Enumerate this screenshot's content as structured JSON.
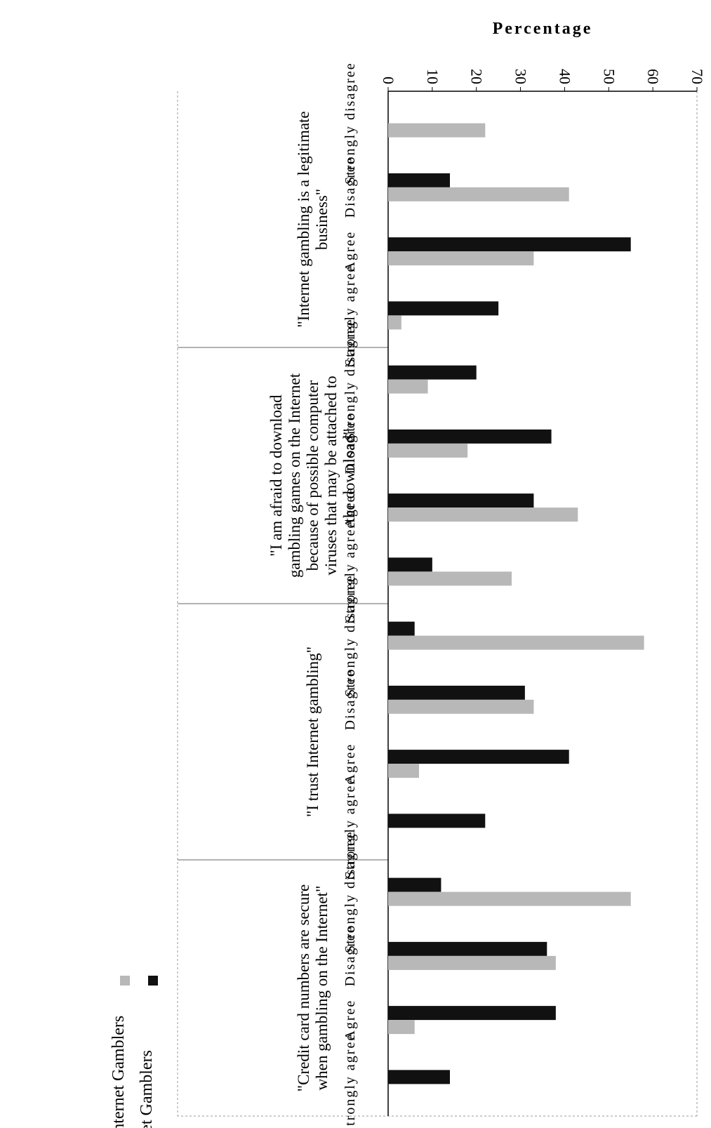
{
  "chart_data": {
    "type": "bar",
    "ylabel": "Percentage",
    "xlabel": "",
    "ylim": [
      0,
      70
    ],
    "yticks": [
      0,
      10,
      20,
      30,
      40,
      50,
      60,
      70
    ],
    "grid": false,
    "legend_position": "right",
    "groups": [
      {
        "statement": "\"Internet gambling is a legitimate business\"",
        "statement_lines": [
          "\"Internet gambling is a legitimate",
          "business\""
        ],
        "categories": [
          "Strongly disagree",
          "Disagree",
          "Agree",
          "Strongly agree"
        ]
      },
      {
        "statement": "\"I am afraid to download gambling games on the Internet because of possible computer viruses that may be attached to the download\"",
        "statement_lines": [
          "\"I am afraid to download",
          "gambling games on the Internet",
          "because of possible computer",
          "viruses that may be attached to",
          "the download\""
        ],
        "categories": [
          "Strongly disagree",
          "Disagree",
          "Agree",
          "Strongly agree"
        ]
      },
      {
        "statement": "\"I trust Internet gambling\"",
        "statement_lines": [
          "\"I trust Internet gambling\""
        ],
        "categories": [
          "Strongly disagree",
          "Disagree",
          "Agree",
          "Strongly agree"
        ]
      },
      {
        "statement": "\"Credit card numbers are secure when gambling on the Internet\"",
        "statement_lines": [
          "\"Credit card numbers are secure",
          "when gambling on the Internet\""
        ],
        "categories": [
          "Strongly disagree",
          "Disagree",
          "Agree",
          "Strongly agree"
        ]
      }
    ],
    "series": [
      {
        "name": "Internet Gamblers",
        "color": "#111111",
        "values": [
          0,
          14,
          55,
          25,
          20,
          37,
          33,
          10,
          6,
          31,
          41,
          22,
          12,
          36,
          38,
          14
        ]
      },
      {
        "name": "Non-Internet Gamblers",
        "color": "#b8b8b8",
        "values": [
          22,
          41,
          33,
          3,
          9,
          18,
          43,
          28,
          58,
          33,
          7,
          0,
          55,
          38,
          6,
          0
        ]
      }
    ]
  }
}
